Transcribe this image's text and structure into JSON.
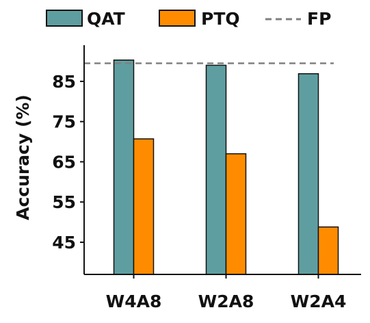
{
  "chart_data": {
    "type": "bar",
    "title": "",
    "xlabel": "",
    "ylabel": "Accuracy (%)",
    "categories": [
      "W4A8",
      "W2A8",
      "W2A4"
    ],
    "series": [
      {
        "name": "QAT",
        "values": [
          90.3,
          89.0,
          86.9
        ],
        "color": "#5f9ea0"
      },
      {
        "name": "PTQ",
        "values": [
          70.7,
          67.0,
          48.8
        ],
        "color": "#ff8c00"
      }
    ],
    "reference_line": {
      "name": "FP",
      "value": 89.5,
      "color": "#808080",
      "style": "dashed"
    },
    "yticks": [
      45,
      55,
      65,
      75,
      85
    ],
    "ylim": [
      37,
      94
    ],
    "grid": false,
    "legend_position": "top"
  }
}
